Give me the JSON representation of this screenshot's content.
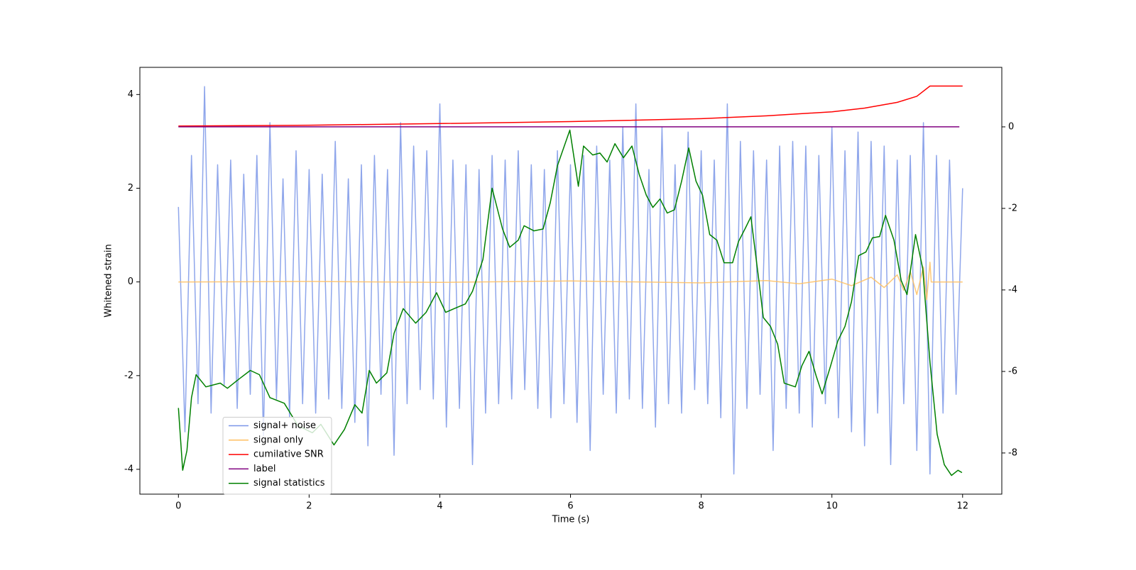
{
  "chart_data": {
    "type": "line",
    "xlabel": "Time (s)",
    "ylabel": "Whitened strain",
    "xlim": [
      -0.59,
      12.6
    ],
    "xticks": [
      0,
      2,
      4,
      6,
      8,
      10,
      12
    ],
    "ylim": [
      -4.53,
      4.58
    ],
    "yticks": [
      -4,
      -2,
      0,
      2,
      4
    ],
    "y2lim": [
      -9.01,
      1.46
    ],
    "y2ticks": [
      -8,
      -6,
      -4,
      -2,
      0
    ],
    "legend": "lower left",
    "series": [
      {
        "name": "signal+ noise",
        "color": "#7b96e8",
        "x": [
          0,
          0.1,
          0.2,
          0.3,
          0.4,
          0.5,
          0.6,
          0.7,
          0.8,
          0.9,
          1,
          1.1,
          1.2,
          1.3,
          1.4,
          1.5,
          1.6,
          1.7,
          1.8,
          1.9,
          2,
          2.1,
          2.2,
          2.3,
          2.4,
          2.5,
          2.6,
          2.7,
          2.8,
          2.9,
          3,
          3.1,
          3.2,
          3.3,
          3.4,
          3.5,
          3.6,
          3.7,
          3.8,
          3.9,
          4,
          4.1,
          4.2,
          4.3,
          4.4,
          4.5,
          4.6,
          4.7,
          4.8,
          4.9,
          5,
          5.1,
          5.2,
          5.3,
          5.4,
          5.5,
          5.6,
          5.7,
          5.8,
          5.9,
          6,
          6.1,
          6.2,
          6.3,
          6.4,
          6.5,
          6.6,
          6.7,
          6.8,
          6.9,
          7,
          7.1,
          7.2,
          7.3,
          7.4,
          7.5,
          7.6,
          7.7,
          7.8,
          7.9,
          8,
          8.1,
          8.2,
          8.3,
          8.4,
          8.5,
          8.6,
          8.7,
          8.8,
          8.9,
          9,
          9.1,
          9.2,
          9.3,
          9.4,
          9.5,
          9.6,
          9.7,
          9.8,
          9.9,
          10,
          10.1,
          10.2,
          10.3,
          10.4,
          10.5,
          10.6,
          10.7,
          10.8,
          10.9,
          11,
          11.1,
          11.2,
          11.3,
          11.4,
          11.5,
          11.6,
          11.7,
          11.8,
          11.9,
          12
        ],
        "values": [
          1.6,
          -3.2,
          2.7,
          -2.6,
          4.17,
          -2.8,
          2.5,
          -2.2,
          2.6,
          -2.7,
          2.3,
          -2.4,
          2.7,
          -3.3,
          3.4,
          -2.5,
          2.2,
          -2.9,
          2.8,
          -2.6,
          2.4,
          -2.8,
          2.3,
          -2.5,
          3.0,
          -2.7,
          2.2,
          -3.0,
          2.5,
          -3.5,
          2.7,
          -2.4,
          2.4,
          -3.7,
          3.4,
          -2.6,
          2.9,
          -2.3,
          2.8,
          -2.5,
          3.8,
          -3.1,
          2.6,
          -2.7,
          2.5,
          -3.9,
          2.4,
          -2.8,
          2.7,
          -2.6,
          2.6,
          -2.5,
          2.8,
          -2.3,
          2.5,
          -2.7,
          2.4,
          -2.9,
          2.8,
          -2.6,
          2.5,
          -3.0,
          2.7,
          -3.6,
          2.9,
          -2.4,
          2.6,
          -2.8,
          3.3,
          -2.5,
          3.8,
          -2.7,
          2.4,
          -3.1,
          3.3,
          -2.6,
          2.5,
          -2.8,
          3.2,
          -2.3,
          2.8,
          -2.6,
          2.6,
          -2.9,
          3.8,
          -4.1,
          3.0,
          -2.7,
          2.8,
          -2.4,
          2.6,
          -3.6,
          2.9,
          -2.7,
          3.0,
          -2.8,
          2.9,
          -3.1,
          2.7,
          -2.6,
          3.3,
          -2.9,
          2.8,
          -3.2,
          3.2,
          -3.5,
          3.0,
          -2.8,
          2.9,
          -3.9,
          2.6,
          -2.6,
          2.7,
          -3.6,
          3.4,
          -4.1,
          2.7,
          -2.8,
          2.6,
          -2.4,
          2.0
        ]
      },
      {
        "name": "signal only",
        "color": "#ffbf60",
        "x": [
          0,
          2,
          4,
          6,
          8,
          9,
          9.5,
          10,
          10.3,
          10.6,
          10.8,
          11,
          11.1,
          11.2,
          11.3,
          11.4,
          11.45,
          11.5,
          11.52,
          12
        ],
        "values": [
          0,
          0.01,
          -0.01,
          0.02,
          -0.02,
          0.03,
          -0.04,
          0.06,
          -0.08,
          0.1,
          -0.12,
          0.15,
          -0.18,
          0.22,
          -0.27,
          0.32,
          -0.38,
          0.42,
          0,
          0
        ]
      },
      {
        "name": "cumilative SNR",
        "color": "#ff0000",
        "axis": "y2",
        "x": [
          0,
          2,
          4,
          6,
          8,
          9,
          10,
          10.5,
          11,
          11.3,
          11.5,
          12
        ],
        "values": [
          0.02,
          0.04,
          0.08,
          0.13,
          0.2,
          0.27,
          0.37,
          0.46,
          0.6,
          0.75,
          1.0,
          1.0
        ]
      },
      {
        "name": "label",
        "color": "#800080",
        "axis": "y2",
        "x": [
          0,
          11.95
        ],
        "values": [
          0,
          0
        ]
      },
      {
        "name": "signal statistics",
        "color": "#008000",
        "x": [
          0,
          0.065,
          0.13,
          0.2,
          0.27,
          0.42,
          0.64,
          0.75,
          0.91,
          1.1,
          1.24,
          1.4,
          1.62,
          1.83,
          2.05,
          2.18,
          2.38,
          2.54,
          2.7,
          2.81,
          2.92,
          3.03,
          3.19,
          3.3,
          3.44,
          3.63,
          3.79,
          3.95,
          4.09,
          4.22,
          4.39,
          4.5,
          4.66,
          4.8,
          4.96,
          5.07,
          5.2,
          5.29,
          5.44,
          5.58,
          5.69,
          5.8,
          5.99,
          6.12,
          6.2,
          6.34,
          6.45,
          6.56,
          6.68,
          6.81,
          6.94,
          7.05,
          7.16,
          7.26,
          7.37,
          7.48,
          7.59,
          7.7,
          7.81,
          7.92,
          8.02,
          8.13,
          8.24,
          8.35,
          8.48,
          8.57,
          8.68,
          8.76,
          8.89,
          8.95,
          9.06,
          9.17,
          9.27,
          9.44,
          9.54,
          9.65,
          9.76,
          9.85,
          9.98,
          10.09,
          10.2,
          10.3,
          10.41,
          10.52,
          10.62,
          10.73,
          10.82,
          10.95,
          11.06,
          11.15,
          11.28,
          11.39,
          11.5,
          11.61,
          11.72,
          11.83,
          11.93,
          11.99
        ],
        "values": [
          -2.69,
          -4.02,
          -3.6,
          -2.47,
          -1.98,
          -2.24,
          -2.16,
          -2.27,
          -2.09,
          -1.89,
          -1.98,
          -2.47,
          -2.59,
          -3.07,
          -3.22,
          -3.04,
          -3.48,
          -3.15,
          -2.62,
          -2.8,
          -1.89,
          -2.16,
          -1.94,
          -1.1,
          -0.57,
          -0.88,
          -0.65,
          -0.23,
          -0.65,
          -0.57,
          -0.47,
          -0.2,
          0.48,
          2.0,
          1.13,
          0.74,
          0.89,
          1.2,
          1.09,
          1.13,
          1.69,
          2.48,
          3.24,
          2.04,
          2.9,
          2.71,
          2.75,
          2.56,
          2.95,
          2.65,
          2.9,
          2.3,
          1.85,
          1.59,
          1.77,
          1.47,
          1.54,
          2.15,
          2.86,
          2.15,
          1.85,
          1.01,
          0.89,
          0.41,
          0.41,
          0.86,
          1.16,
          1.39,
          -0.05,
          -0.76,
          -0.95,
          -1.33,
          -2.16,
          -2.24,
          -1.79,
          -1.48,
          -2.01,
          -2.39,
          -1.79,
          -1.26,
          -0.95,
          -0.42,
          0.56,
          0.64,
          0.94,
          0.97,
          1.42,
          0.89,
          0.03,
          -0.27,
          1.01,
          0.29,
          -1.71,
          -3.25,
          -3.9,
          -4.13,
          -4.02,
          -4.07
        ]
      }
    ]
  }
}
